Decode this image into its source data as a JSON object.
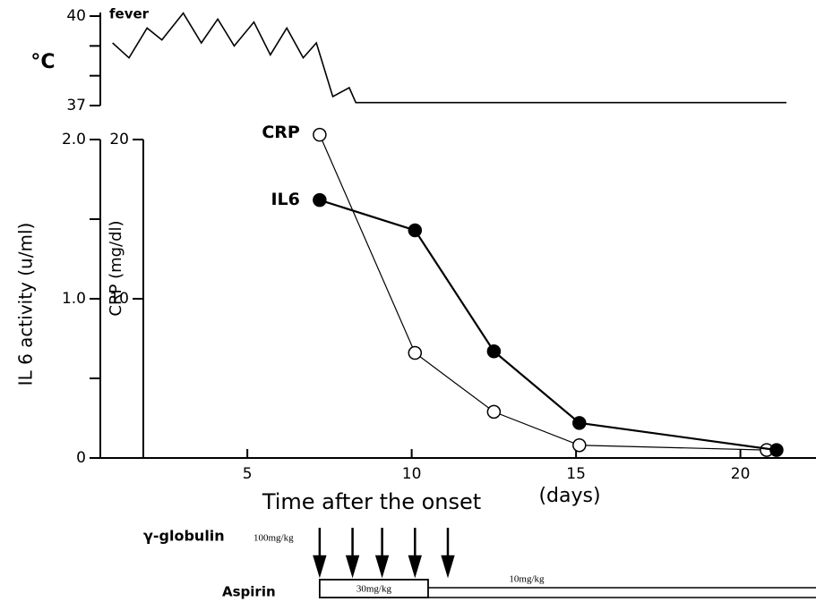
{
  "chart_data": [
    {
      "type": "line",
      "ylabel": "°C",
      "annotation": "fever",
      "xlim": [
        0.5,
        22.3
      ],
      "ylim": [
        37,
        40
      ],
      "yticks": [
        37,
        40
      ],
      "yminor_ticks": [
        38,
        39
      ],
      "series": [
        {
          "name": "fever",
          "color": "#000",
          "x": [
            0.9,
            1.4,
            1.95,
            2.4,
            3.05,
            3.6,
            4.1,
            4.6,
            5.2,
            5.7,
            6.2,
            6.7,
            7.1,
            7.6,
            8.1,
            8.3,
            21.4
          ],
          "values": [
            39.1,
            38.6,
            39.6,
            39.2,
            40.1,
            39.1,
            39.9,
            39.0,
            39.8,
            38.7,
            39.6,
            38.6,
            39.1,
            37.3,
            37.6,
            37.1,
            37.1
          ]
        }
      ]
    },
    {
      "type": "line",
      "ylabel": "IL 6 activity (u/ml)",
      "y2label": "CRP (mg/dl)",
      "xlabel": "Time after the onset",
      "xlabel_unit": "(days)",
      "xlim": [
        0.5,
        22.3
      ],
      "xticks": [
        5,
        10,
        15,
        20
      ],
      "ylim": [
        0,
        2
      ],
      "yticks": [
        0,
        {
          "value": 1,
          "label": "1.0"
        },
        {
          "value": 2,
          "label": "2.0"
        }
      ],
      "yminor_ticks": [
        0.5,
        1.5
      ],
      "y2lim": [
        0,
        20
      ],
      "y2ticks": [
        10,
        20
      ],
      "series": [
        {
          "name": "CRP",
          "axis": "y2",
          "color": "#000",
          "marker_fill": "#fff",
          "x": [
            7.2,
            10.1,
            12.5,
            15.1,
            20.8
          ],
          "values": [
            20.3,
            6.6,
            2.9,
            0.8,
            0.5
          ]
        },
        {
          "name": "IL6",
          "axis": "y",
          "color": "#000",
          "marker_fill": "#000",
          "x": [
            7.2,
            10.1,
            12.5,
            15.1,
            21.1
          ],
          "values": [
            1.62,
            1.43,
            0.67,
            0.22,
            0.05
          ]
        }
      ]
    }
  ],
  "treatments": {
    "gamma_globulin": {
      "label": "γ-globulin",
      "dose": "100mg/kg",
      "days": [
        7.2,
        8.2,
        9.1,
        10.1,
        11.1
      ]
    },
    "aspirin": {
      "label": "Aspirin",
      "phases": [
        {
          "label": "30mg/kg",
          "start": 7.2,
          "end": 10.5
        },
        {
          "label": "10mg/kg",
          "start": 10.5,
          "end": 22.3
        }
      ]
    }
  }
}
